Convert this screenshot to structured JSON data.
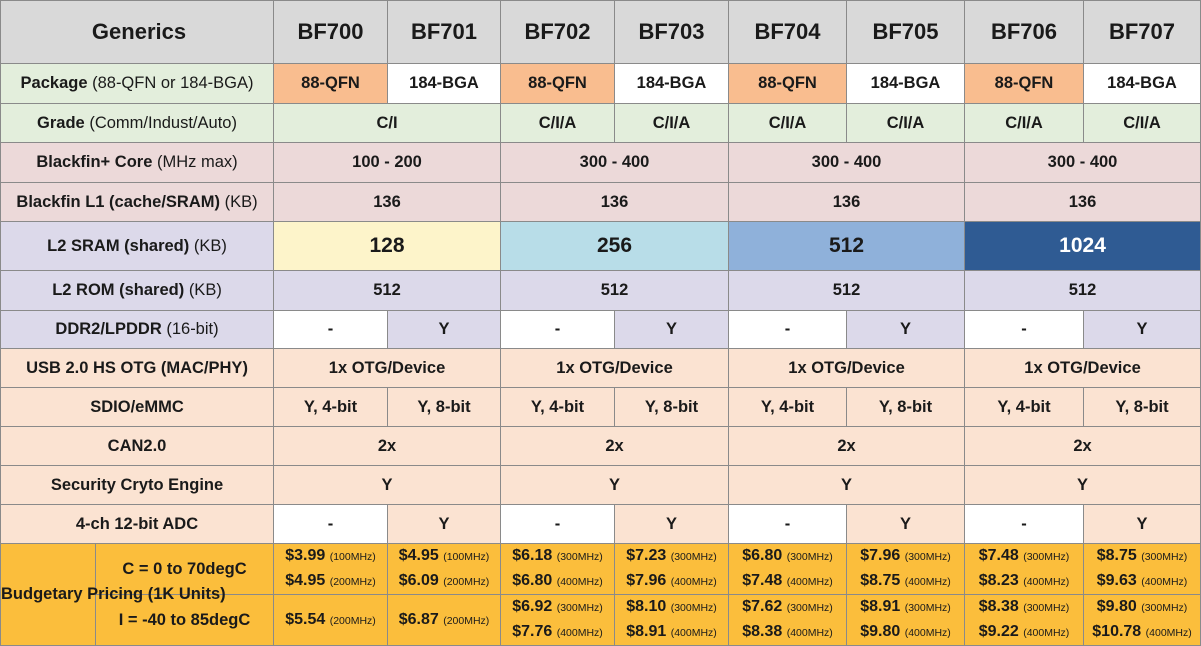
{
  "header": {
    "title": "Generics",
    "parts": [
      "BF700",
      "BF701",
      "BF702",
      "BF703",
      "BF704",
      "BF705",
      "BF706",
      "BF707"
    ]
  },
  "rows": {
    "package": {
      "label": "Package",
      "unit": "(88-QFN or 184-BGA)",
      "values": [
        "88-QFN",
        "184-BGA",
        "88-QFN",
        "184-BGA",
        "88-QFN",
        "184-BGA",
        "88-QFN",
        "184-BGA"
      ]
    },
    "grade": {
      "label": "Grade",
      "unit": "(Comm/Indust/Auto)",
      "values": [
        "C/I",
        "C/I/A",
        "C/I/A",
        "C/I/A",
        "C/I/A",
        "C/I/A",
        "C/I/A"
      ]
    },
    "core": {
      "label": "Blackfin+ Core",
      "unit": "(MHz max)",
      "values": [
        "100 - 200",
        "300 - 400",
        "300 - 400",
        "300 - 400"
      ]
    },
    "l1": {
      "label": "Blackfin L1 (cache/SRAM)",
      "unit": "(KB)",
      "values": [
        "136",
        "136",
        "136",
        "136"
      ]
    },
    "l2sram": {
      "label": "L2 SRAM (shared)",
      "unit": "(KB)",
      "values": [
        "128",
        "256",
        "512",
        "1024"
      ],
      "colors": [
        "#fdf4ca",
        "#b8dde8",
        "#8fb1da",
        "#2f5b93"
      ]
    },
    "l2rom": {
      "label": "L2 ROM (shared)",
      "unit": "(KB)",
      "values": [
        "512",
        "512",
        "512",
        "512"
      ]
    },
    "ddr": {
      "label": "DDR2/LPDDR",
      "unit": "(16-bit)",
      "values": [
        "-",
        "Y",
        "-",
        "Y",
        "-",
        "Y",
        "-",
        "Y"
      ]
    },
    "usb": {
      "label": "USB 2.0 HS OTG (MAC/PHY)",
      "values": [
        "1x OTG/Device",
        "1x OTG/Device",
        "1x OTG/Device",
        "1x OTG/Device"
      ]
    },
    "sdio": {
      "label": "SDIO/eMMC",
      "values": [
        "Y, 4-bit",
        "Y, 8-bit",
        "Y, 4-bit",
        "Y, 8-bit",
        "Y, 4-bit",
        "Y, 8-bit",
        "Y, 4-bit",
        "Y, 8-bit"
      ]
    },
    "can": {
      "label": "CAN2.0",
      "values": [
        "2x",
        "2x",
        "2x",
        "2x"
      ]
    },
    "security": {
      "label": "Security Cryto Engine",
      "values": [
        "Y",
        "Y",
        "Y",
        "Y"
      ]
    },
    "adc": {
      "label": "4-ch 12-bit ADC",
      "values": [
        "-",
        "Y",
        "-",
        "Y",
        "-",
        "Y",
        "-",
        "Y"
      ]
    }
  },
  "pricing": {
    "title": "Budgetary Pricing (1K Units)",
    "commercial": {
      "label": "C = 0 to 70degC",
      "cells": [
        [
          [
            "$3.99",
            "(100MHz)"
          ],
          [
            "$4.95",
            "(200MHz)"
          ]
        ],
        [
          [
            "$4.95",
            "(100MHz)"
          ],
          [
            "$6.09",
            "(200MHz)"
          ]
        ],
        [
          [
            "$6.18",
            "(300MHz)"
          ],
          [
            "$6.80",
            "(400MHz)"
          ]
        ],
        [
          [
            "$7.23",
            "(300MHz)"
          ],
          [
            "$7.96",
            "(400MHz)"
          ]
        ],
        [
          [
            "$6.80",
            "(300MHz)"
          ],
          [
            "$7.48",
            "(400MHz)"
          ]
        ],
        [
          [
            "$7.96",
            "(300MHz)"
          ],
          [
            "$8.75",
            "(400MHz)"
          ]
        ],
        [
          [
            "$7.48",
            "(300MHz)"
          ],
          [
            "$8.23",
            "(400MHz)"
          ]
        ],
        [
          [
            "$8.75",
            "(300MHz)"
          ],
          [
            "$9.63",
            "(400MHz)"
          ]
        ]
      ]
    },
    "industrial": {
      "label": "I = -40 to 85degC",
      "cells": [
        [
          [
            "$5.54",
            "(200MHz)"
          ]
        ],
        [
          [
            "$6.87",
            "(200MHz)"
          ]
        ],
        [
          [
            "$6.92",
            "(300MHz)"
          ],
          [
            "$7.76",
            "(400MHz)"
          ]
        ],
        [
          [
            "$8.10",
            "(300MHz)"
          ],
          [
            "$8.91",
            "(400MHz)"
          ]
        ],
        [
          [
            "$7.62",
            "(300MHz)"
          ],
          [
            "$8.38",
            "(400MHz)"
          ]
        ],
        [
          [
            "$8.91",
            "(300MHz)"
          ],
          [
            "$9.80",
            "(400MHz)"
          ]
        ],
        [
          [
            "$8.38",
            "(300MHz)"
          ],
          [
            "$9.22",
            "(400MHz)"
          ]
        ],
        [
          [
            "$9.80",
            "(300MHz)"
          ],
          [
            "$10.78",
            "(400MHz)"
          ]
        ]
      ]
    }
  }
}
